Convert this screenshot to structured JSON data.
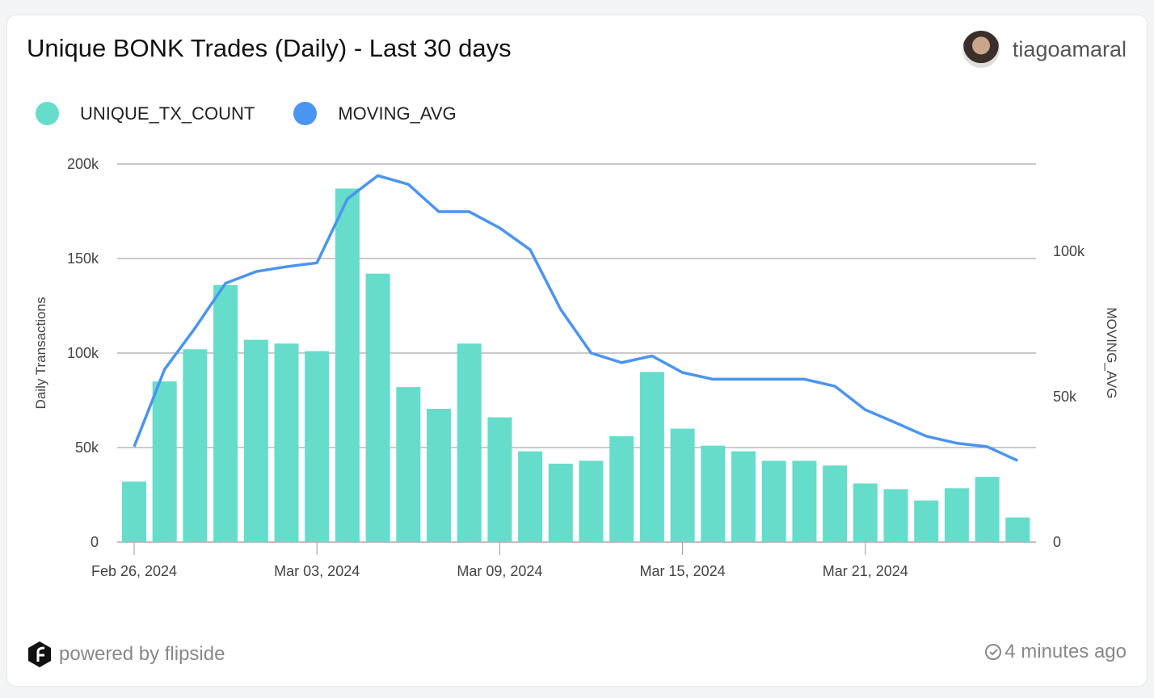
{
  "header": {
    "title": "Unique BONK Trades (Daily) - Last 30 days",
    "username": "tiagoamaral"
  },
  "footer": {
    "powered": "powered by flipside",
    "updated": "4 minutes ago"
  },
  "chart_data": {
    "type": "bar",
    "title": "Unique BONK Trades (Daily) - Last 30 days",
    "x": [
      "2024-02-26",
      "2024-02-27",
      "2024-02-28",
      "2024-02-29",
      "2024-03-01",
      "2024-03-02",
      "2024-03-03",
      "2024-03-04",
      "2024-03-05",
      "2024-03-06",
      "2024-03-07",
      "2024-03-08",
      "2024-03-09",
      "2024-03-10",
      "2024-03-11",
      "2024-03-12",
      "2024-03-13",
      "2024-03-14",
      "2024-03-15",
      "2024-03-16",
      "2024-03-17",
      "2024-03-18",
      "2024-03-19",
      "2024-03-20",
      "2024-03-21",
      "2024-03-22",
      "2024-03-23",
      "2024-03-24",
      "2024-03-25",
      "2024-03-26"
    ],
    "x_tick_labels": [
      "Feb 26, 2024",
      "Mar 03, 2024",
      "Mar 09, 2024",
      "Mar 15, 2024",
      "Mar 21, 2024"
    ],
    "series": [
      {
        "name": "UNIQUE_TX_COUNT",
        "type": "bar",
        "axis": "left",
        "color": "#66dccb",
        "values": [
          32000,
          85000,
          102000,
          136000,
          107000,
          105000,
          101000,
          187000,
          142000,
          82000,
          70500,
          105000,
          66000,
          48000,
          41500,
          43000,
          56000,
          90000,
          60000,
          51000,
          48000,
          43000,
          43000,
          40500,
          31000,
          28000,
          22000,
          28500,
          34500,
          13000
        ]
      },
      {
        "name": "MOVING_AVG",
        "type": "line",
        "axis": "right",
        "color": "#4a94f2",
        "values": [
          32800,
          59400,
          73600,
          89000,
          93000,
          94700,
          96000,
          118000,
          126000,
          123000,
          113600,
          113600,
          108000,
          100500,
          80000,
          65000,
          61700,
          64000,
          58300,
          56000,
          56000,
          56000,
          56000,
          53600,
          45500,
          41000,
          36400,
          34000,
          32800,
          28000
        ]
      }
    ],
    "ylabel": "Daily Transactions",
    "ylim": [
      0,
      200000
    ],
    "y_tick_labels": [
      "0",
      "50k",
      "100k",
      "150k",
      "200k"
    ],
    "y2label": "MOVING_AVG",
    "y2lim": [
      0,
      130000
    ],
    "y2_tick_labels": [
      "0",
      "50k",
      "100k"
    ],
    "grid": true,
    "legend": "top-left"
  }
}
